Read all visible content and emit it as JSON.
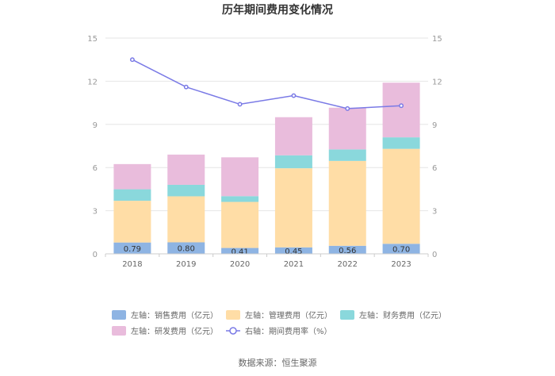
{
  "chart_data": {
    "type": "bar",
    "stacked": true,
    "title": "历年期间费用变化情况",
    "categories": [
      "2018",
      "2019",
      "2020",
      "2021",
      "2022",
      "2023"
    ],
    "series": [
      {
        "name": "左轴：销售费用（亿元）",
        "axis": "left",
        "color": "#8eb4e3",
        "values": [
          0.79,
          0.8,
          0.41,
          0.45,
          0.56,
          0.7
        ],
        "labels": [
          "0.79",
          "0.80",
          "0.41",
          "0.45",
          "0.56",
          "0.70"
        ]
      },
      {
        "name": "左轴：管理费用（亿元）",
        "axis": "left",
        "color": "#ffdda6",
        "values": [
          2.9,
          3.2,
          3.2,
          5.5,
          5.9,
          6.6
        ]
      },
      {
        "name": "左轴：财务费用（亿元）",
        "axis": "left",
        "color": "#8ad8dc",
        "values": [
          0.8,
          0.8,
          0.4,
          0.9,
          0.8,
          0.8
        ]
      },
      {
        "name": "左轴：研发费用（亿元）",
        "axis": "left",
        "color": "#e9bcdc",
        "values": [
          1.75,
          2.1,
          2.7,
          2.65,
          2.9,
          3.8
        ]
      }
    ],
    "line_series": {
      "name": "右轴：期间费用率（%）",
      "axis": "right",
      "color": "#7a7ae6",
      "values": [
        13.5,
        11.6,
        10.4,
        11.0,
        10.1,
        10.3
      ]
    },
    "left_axis": {
      "min": 0,
      "max": 15,
      "ticks": [
        "0",
        "3",
        "6",
        "9",
        "12",
        "15"
      ]
    },
    "right_axis": {
      "min": 0,
      "max": 15,
      "ticks": [
        "0",
        "3",
        "6",
        "9",
        "12",
        "15"
      ]
    },
    "grid": true,
    "legend_position": "bottom"
  },
  "source_text": "数据来源：恒生聚源"
}
